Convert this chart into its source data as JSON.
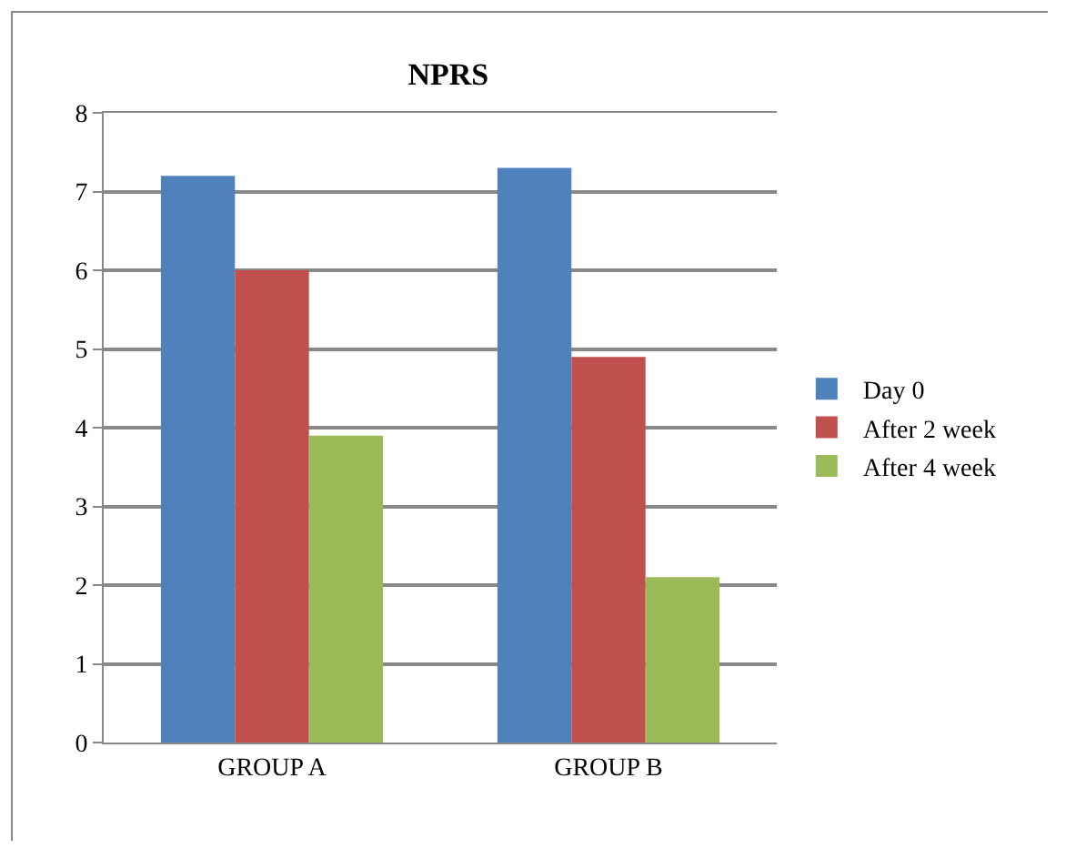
{
  "chart_data": {
    "type": "bar",
    "title": "NPRS",
    "categories": [
      "GROUP A",
      "GROUP B"
    ],
    "series": [
      {
        "name": "Day 0",
        "color": "#4f81bd",
        "values": [
          7.2,
          7.3
        ]
      },
      {
        "name": "After 2 week",
        "color": "#c0504d",
        "values": [
          6.0,
          4.9
        ]
      },
      {
        "name": "After 4 week",
        "color": "#9bbb59",
        "values": [
          3.9,
          2.1
        ]
      }
    ],
    "ylim": [
      0,
      8
    ],
    "yticks": [
      0,
      1,
      2,
      3,
      4,
      5,
      6,
      7,
      8
    ],
    "grid": "y",
    "legend": "right"
  }
}
